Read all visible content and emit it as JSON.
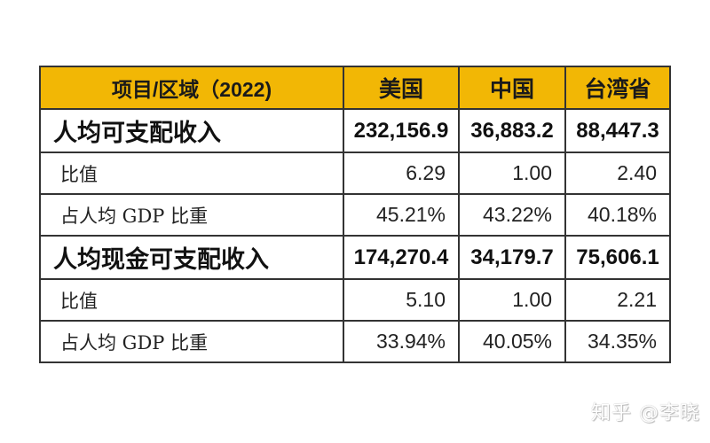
{
  "table": {
    "header": {
      "item_region": "项目/区域（2022)",
      "columns": [
        "美国",
        "中国",
        "台湾省"
      ]
    },
    "sections": [
      {
        "label": "人均可支配收入",
        "values": [
          "232,156.9",
          "36,883.2",
          "88,447.3"
        ],
        "ratio": {
          "label": "比值",
          "values": [
            "6.29",
            "1.00",
            "2.40"
          ]
        },
        "gdp_share": {
          "label": "占人均 GDP 比重",
          "values": [
            "45.21%",
            "43.22%",
            "40.18%"
          ]
        }
      },
      {
        "label": "人均现金可支配收入",
        "values": [
          "174,270.4",
          "34,179.7",
          "75,606.1"
        ],
        "ratio": {
          "label": "比值",
          "values": [
            "5.10",
            "1.00",
            "2.21"
          ]
        },
        "gdp_share": {
          "label": "占人均 GDP 比重",
          "values": [
            "33.94%",
            "40.05%",
            "34.35%"
          ]
        }
      }
    ],
    "colors": {
      "header_bg": "#f2b705",
      "border": "#333333"
    }
  },
  "watermark": "知乎 @李晓"
}
